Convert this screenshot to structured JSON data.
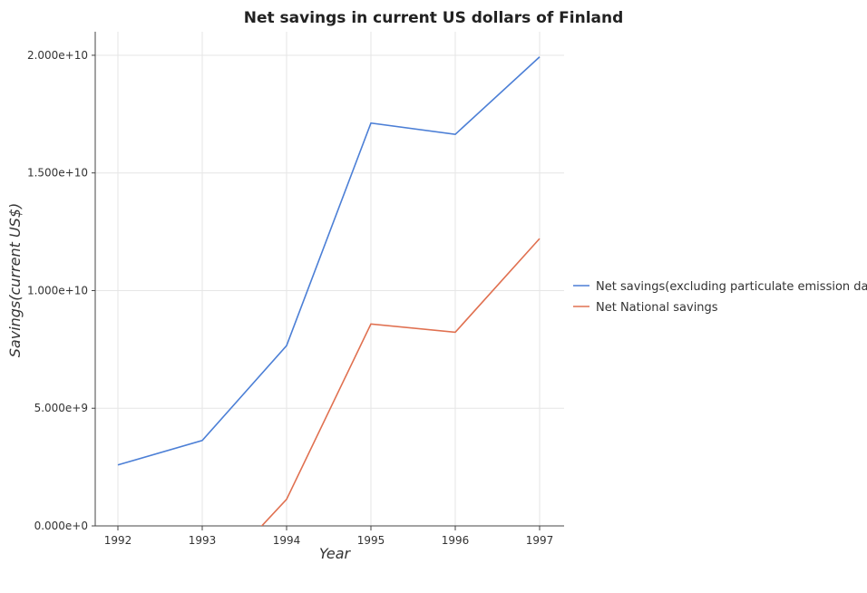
{
  "chart_data": {
    "type": "line",
    "title": "Net savings in current US dollars of Finland",
    "xlabel": "Year",
    "ylabel": "Savings(current US$)",
    "categories": [
      "1992",
      "1993",
      "1994",
      "1995",
      "1996",
      "1997"
    ],
    "ylim": [
      0,
      21000000000
    ],
    "yticks": [
      0,
      5000000000,
      10000000000,
      15000000000,
      20000000000
    ],
    "ytick_labels": [
      "0.000e+0",
      "5.000e+9",
      "1.000e+10",
      "1.500e+10",
      "2.000e+10"
    ],
    "grid": true,
    "legend_position": "right",
    "series": [
      {
        "name": "Net savings(excluding particulate emission damage)",
        "color": "#4c7fd6",
        "values": [
          2590000000,
          3630000000,
          7660000000,
          17120000000,
          16640000000,
          19930000000
        ]
      },
      {
        "name": "Net National savings",
        "color": "#e07050",
        "values": [
          null,
          null,
          1130000000,
          8580000000,
          8230000000,
          12210000000
        ]
      }
    ]
  }
}
